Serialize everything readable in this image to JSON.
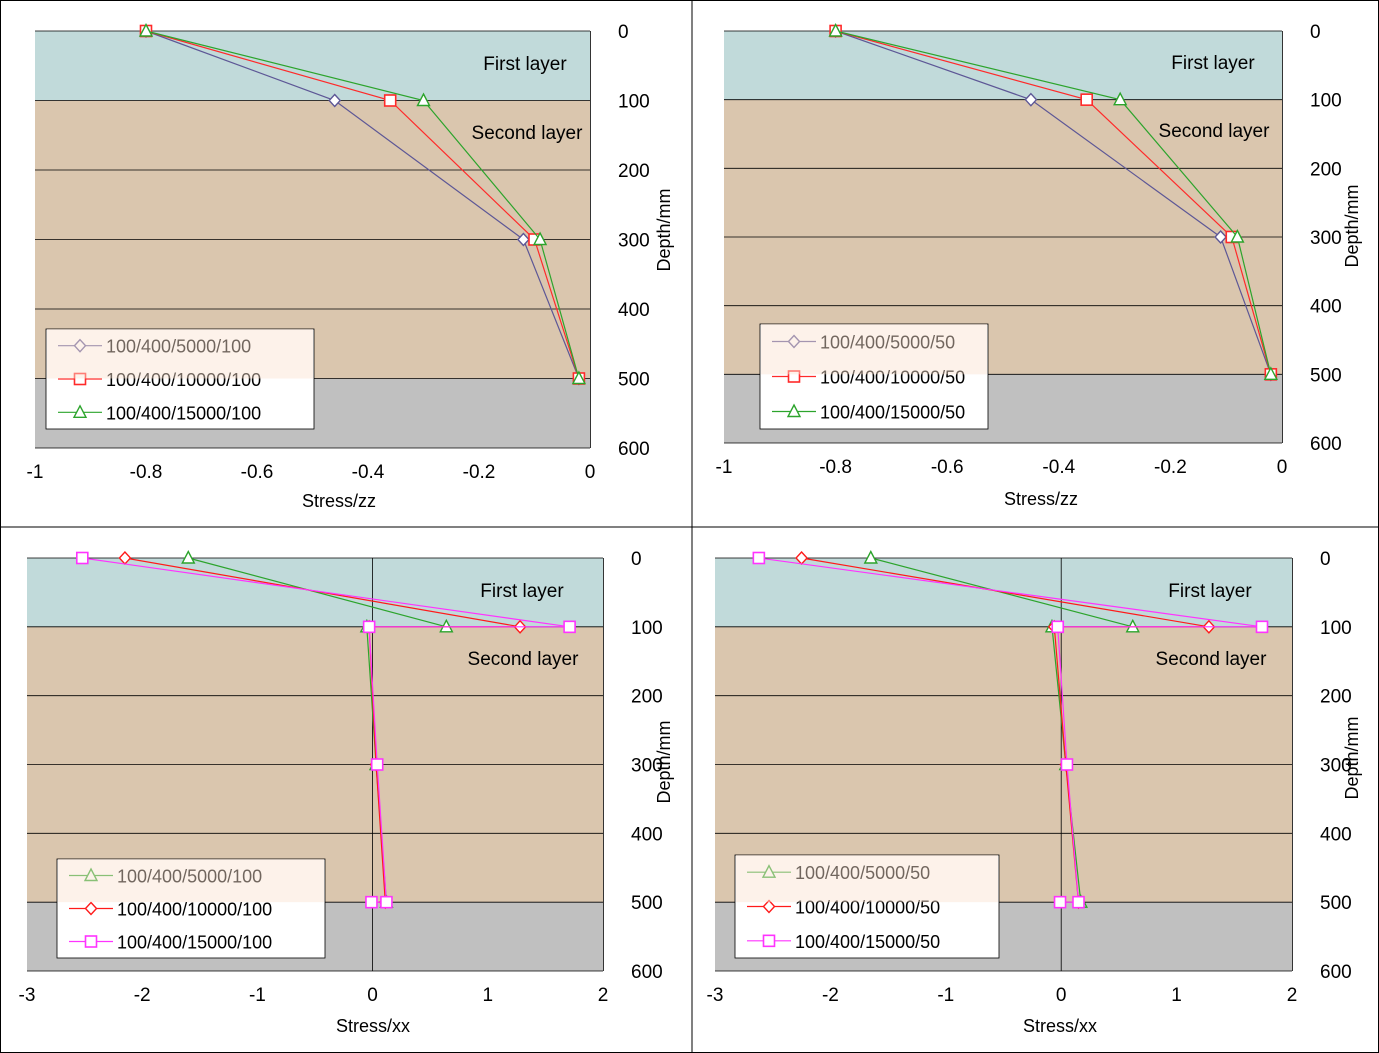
{
  "chart_data": [
    {
      "type": "line",
      "xlabel": "Stress/zz",
      "ylabel": "Depth/mm",
      "xlim": [
        -1,
        0
      ],
      "ylim": [
        0,
        600
      ],
      "y_inverted": true,
      "x_ticks": [
        "-1",
        "-0.8",
        "-0.6",
        "-0.4",
        "-0.2",
        "0"
      ],
      "y_ticks": [
        "0",
        "100",
        "200",
        "300",
        "400",
        "500",
        "600"
      ],
      "layers": [
        {
          "label": "First layer",
          "from": 0,
          "to": 100,
          "color": "#c1dada"
        },
        {
          "label": "Second layer",
          "from": 100,
          "to": 500,
          "color": "#dac6ae"
        },
        {
          "label": "",
          "from": 500,
          "to": 600,
          "color": "#c0c0c0"
        }
      ],
      "legend_position": "bottom-left",
      "series": [
        {
          "name": "100/400/5000/100",
          "color": "#5d5796",
          "marker": "diamond",
          "points": [
            [
              -0.8,
              0
            ],
            [
              -0.46,
              100
            ],
            [
              -0.12,
              300
            ],
            [
              -0.02,
              500
            ]
          ]
        },
        {
          "name": "100/400/10000/100",
          "color": "#ff2a2a",
          "marker": "square",
          "points": [
            [
              -0.8,
              0
            ],
            [
              -0.36,
              100
            ],
            [
              -0.1,
              300
            ],
            [
              -0.02,
              500
            ]
          ]
        },
        {
          "name": "100/400/15000/100",
          "color": "#2ca42c",
          "marker": "triangle",
          "points": [
            [
              -0.8,
              0
            ],
            [
              -0.3,
              100
            ],
            [
              -0.09,
              300
            ],
            [
              -0.02,
              500
            ]
          ]
        }
      ]
    },
    {
      "type": "line",
      "xlabel": "Stress/zz",
      "ylabel": "Depth/mm",
      "xlim": [
        -1,
        0
      ],
      "ylim": [
        0,
        600
      ],
      "y_inverted": true,
      "x_ticks": [
        "-1",
        "-0.8",
        "-0.6",
        "-0.4",
        "-0.2",
        "0"
      ],
      "y_ticks": [
        "0",
        "100",
        "200",
        "300",
        "400",
        "500",
        "600"
      ],
      "layers": [
        {
          "label": "First layer",
          "from": 0,
          "to": 100,
          "color": "#c1dada"
        },
        {
          "label": "Second layer",
          "from": 100,
          "to": 500,
          "color": "#dac6ae"
        },
        {
          "label": "",
          "from": 500,
          "to": 600,
          "color": "#c0c0c0"
        }
      ],
      "legend_position": "bottom-left",
      "series": [
        {
          "name": "100/400/5000/50",
          "color": "#5d5796",
          "marker": "diamond",
          "points": [
            [
              -0.8,
              0
            ],
            [
              -0.45,
              100
            ],
            [
              -0.11,
              300
            ],
            [
              -0.02,
              500
            ]
          ]
        },
        {
          "name": "100/400/10000/50",
          "color": "#ff2a2a",
          "marker": "square",
          "points": [
            [
              -0.8,
              0
            ],
            [
              -0.35,
              100
            ],
            [
              -0.09,
              300
            ],
            [
              -0.02,
              500
            ]
          ]
        },
        {
          "name": "100/400/15000/50",
          "color": "#2ca42c",
          "marker": "triangle",
          "points": [
            [
              -0.8,
              0
            ],
            [
              -0.29,
              100
            ],
            [
              -0.08,
              300
            ],
            [
              -0.02,
              500
            ]
          ]
        }
      ]
    },
    {
      "type": "line",
      "xlabel": "Stress/xx",
      "ylabel": "Depth/mm",
      "xlim": [
        -3,
        2
      ],
      "ylim": [
        0,
        600
      ],
      "y_inverted": true,
      "x_ticks": [
        "-3",
        "-2",
        "-1",
        "0",
        "1",
        "2"
      ],
      "y_ticks": [
        "0",
        "100",
        "200",
        "300",
        "400",
        "500",
        "600"
      ],
      "layers": [
        {
          "label": "First layer",
          "from": 0,
          "to": 100,
          "color": "#c1dada"
        },
        {
          "label": "Second layer",
          "from": 100,
          "to": 500,
          "color": "#dac6ae"
        },
        {
          "label": "",
          "from": 500,
          "to": 600,
          "color": "#c0c0c0"
        }
      ],
      "legend_position": "bottom-left",
      "series": [
        {
          "name": "100/400/5000/100",
          "color": "#2ca42c",
          "marker": "triangle",
          "points": [
            [
              -1.6,
              0
            ],
            [
              0.64,
              100
            ],
            [
              -0.05,
              100
            ],
            [
              0.03,
              300
            ],
            [
              0.12,
              500
            ]
          ]
        },
        {
          "name": "100/400/10000/100",
          "color": "#ff1a1a",
          "marker": "diamond",
          "points": [
            [
              -2.15,
              0
            ],
            [
              1.28,
              100
            ],
            [
              -0.03,
              100
            ],
            [
              0.03,
              300
            ],
            [
              0.11,
              500
            ]
          ]
        },
        {
          "name": "100/400/15000/100",
          "color": "#ff33ff",
          "marker": "square",
          "points": [
            [
              -2.52,
              0
            ],
            [
              1.71,
              100
            ],
            [
              -0.03,
              100
            ],
            [
              0.04,
              300
            ],
            [
              0.12,
              500
            ],
            [
              -0.01,
              500
            ]
          ]
        }
      ]
    },
    {
      "type": "line",
      "xlabel": "Stress/xx",
      "ylabel": "Depth/mm",
      "xlim": [
        -3,
        2
      ],
      "ylim": [
        0,
        600
      ],
      "y_inverted": true,
      "x_ticks": [
        "-3",
        "-2",
        "-1",
        "0",
        "1",
        "2"
      ],
      "y_ticks": [
        "0",
        "100",
        "200",
        "300",
        "400",
        "500",
        "600"
      ],
      "layers": [
        {
          "label": "First layer",
          "from": 0,
          "to": 100,
          "color": "#c1dada"
        },
        {
          "label": "Second layer",
          "from": 100,
          "to": 500,
          "color": "#dac6ae"
        },
        {
          "label": "",
          "from": 500,
          "to": 600,
          "color": "#c0c0c0"
        }
      ],
      "legend_position": "bottom-left",
      "series": [
        {
          "name": "100/400/5000/50",
          "color": "#2ca42c",
          "marker": "triangle",
          "points": [
            [
              -1.65,
              0
            ],
            [
              0.62,
              100
            ],
            [
              -0.08,
              100
            ],
            [
              0.04,
              300
            ],
            [
              0.17,
              500
            ]
          ]
        },
        {
          "name": "100/400/10000/50",
          "color": "#ff1a1a",
          "marker": "diamond",
          "points": [
            [
              -2.25,
              0
            ],
            [
              1.28,
              100
            ],
            [
              -0.06,
              100
            ],
            [
              0.04,
              300
            ],
            [
              0.15,
              500
            ]
          ]
        },
        {
          "name": "100/400/15000/50",
          "color": "#ff33ff",
          "marker": "square",
          "points": [
            [
              -2.62,
              0
            ],
            [
              1.74,
              100
            ],
            [
              -0.03,
              100
            ],
            [
              0.05,
              300
            ],
            [
              0.15,
              500
            ],
            [
              -0.01,
              500
            ]
          ]
        }
      ]
    }
  ]
}
